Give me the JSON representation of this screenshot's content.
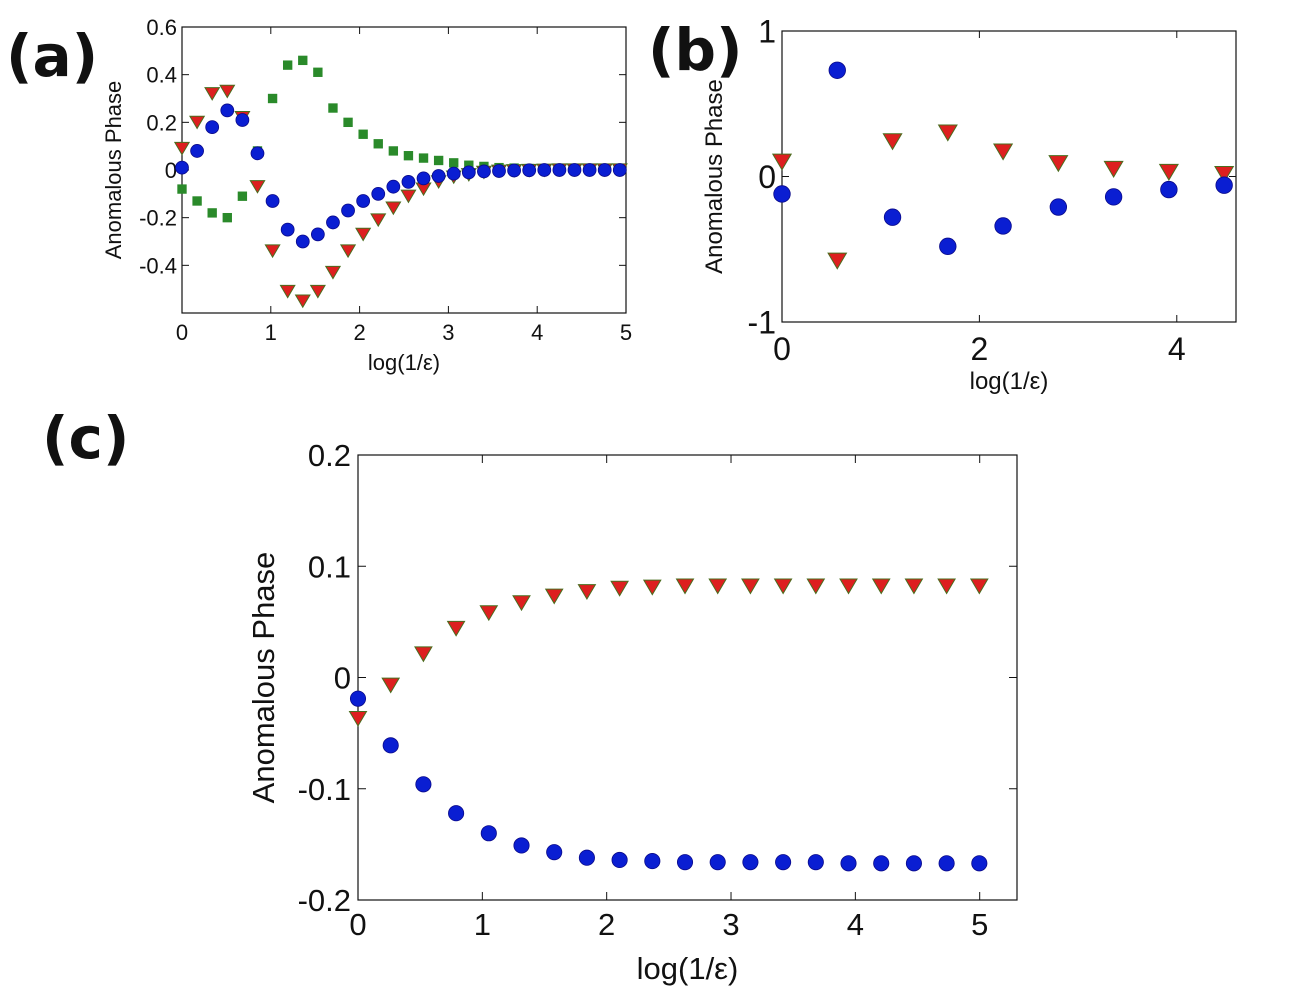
{
  "chart_data": [
    {
      "panel": "(a)",
      "type": "scatter",
      "xlabel": "log(1/ε)",
      "ylabel": "Anomalous Phase",
      "xlim": [
        0,
        5
      ],
      "ylim": [
        -0.6,
        0.6
      ],
      "xticks": [
        0,
        1,
        2,
        3,
        4,
        5
      ],
      "xtick_labels": [
        "0",
        "1",
        "2",
        "3",
        "4",
        "5"
      ],
      "yticks": [
        0.6,
        0.4,
        0.2,
        0,
        -0.2,
        -0.4
      ],
      "ytick_labels": [
        "0.6",
        "0.4",
        "0.2",
        "0",
        "-0.2",
        "-0.4"
      ],
      "x": [
        0,
        0.17,
        0.34,
        0.51,
        0.68,
        0.85,
        1.02,
        1.19,
        1.36,
        1.53,
        1.7,
        1.87,
        2.04,
        2.21,
        2.38,
        2.55,
        2.72,
        2.89,
        3.06,
        3.23,
        3.4,
        3.57,
        3.74,
        3.91,
        4.08,
        4.25,
        4.42,
        4.59,
        4.76,
        4.93
      ],
      "series": [
        {
          "name": "red-triangles",
          "color": "#dd1f1f",
          "marker": "triangle-down",
          "values": [
            0.09,
            0.2,
            0.32,
            0.33,
            0.22,
            -0.07,
            -0.34,
            -0.51,
            -0.55,
            -0.51,
            -0.43,
            -0.34,
            -0.27,
            -0.21,
            -0.16,
            -0.11,
            -0.08,
            -0.05,
            -0.03,
            -0.02,
            -0.01,
            -0.005,
            -0.003,
            -0.002,
            -0.001,
            0,
            0,
            0,
            0,
            0
          ]
        },
        {
          "name": "green-squares",
          "color": "#2a8a2a",
          "marker": "square",
          "values": [
            -0.08,
            -0.13,
            -0.18,
            -0.2,
            -0.11,
            0.08,
            0.3,
            0.44,
            0.46,
            0.41,
            0.26,
            0.2,
            0.15,
            0.11,
            0.08,
            0.06,
            0.05,
            0.04,
            0.03,
            0.02,
            0.015,
            0.01,
            0.008,
            0.006,
            0.004,
            0.003,
            0.002,
            0.001,
            0,
            0
          ]
        },
        {
          "name": "blue-circles",
          "color": "#0a1ed2",
          "marker": "circle",
          "values": [
            0.01,
            0.08,
            0.18,
            0.25,
            0.21,
            0.07,
            -0.13,
            -0.25,
            -0.3,
            -0.27,
            -0.22,
            -0.17,
            -0.13,
            -0.1,
            -0.07,
            -0.05,
            -0.035,
            -0.025,
            -0.015,
            -0.01,
            -0.006,
            -0.004,
            -0.002,
            -0.001,
            0,
            0,
            0,
            0,
            0,
            0
          ]
        }
      ]
    },
    {
      "panel": "(b)",
      "type": "scatter",
      "xlabel": "log(1/ε)",
      "ylabel": "Anomalous Phase",
      "xlim": [
        0,
        4.6
      ],
      "ylim": [
        -1,
        1
      ],
      "xticks": [
        0,
        2,
        4
      ],
      "xtick_labels": [
        "0",
        "2",
        "4"
      ],
      "yticks": [
        1,
        0,
        -1
      ],
      "ytick_labels": [
        "1",
        "0",
        "-1"
      ],
      "x": [
        0,
        0.56,
        1.12,
        1.68,
        2.24,
        2.8,
        3.36,
        3.92,
        4.48
      ],
      "series": [
        {
          "name": "red-triangles",
          "color": "#dd1f1f",
          "marker": "triangle-down",
          "values": [
            0.1,
            -0.58,
            0.24,
            0.3,
            0.17,
            0.09,
            0.05,
            0.03,
            0.015
          ]
        },
        {
          "name": "blue-circles",
          "color": "#0a1ed2",
          "marker": "circle",
          "values": [
            -0.12,
            0.73,
            -0.28,
            -0.48,
            -0.34,
            -0.21,
            -0.14,
            -0.09,
            -0.06
          ]
        }
      ]
    },
    {
      "panel": "(c)",
      "type": "scatter",
      "xlabel": "log(1/ε)",
      "ylabel": "Anomalous Phase",
      "xlim": [
        0,
        5.3
      ],
      "ylim": [
        -0.2,
        0.2
      ],
      "xticks": [
        0,
        1,
        2,
        3,
        4,
        5
      ],
      "xtick_labels": [
        "0",
        "1",
        "2",
        "3",
        "4",
        "5"
      ],
      "yticks": [
        0.2,
        0.1,
        0,
        -0.1,
        -0.2
      ],
      "ytick_labels": [
        "0.2",
        "0.1",
        "0",
        "-0.1",
        "-0.2"
      ],
      "x": [
        0,
        0.263,
        0.526,
        0.789,
        1.052,
        1.315,
        1.578,
        1.841,
        2.104,
        2.367,
        2.63,
        2.893,
        3.156,
        3.419,
        3.682,
        3.945,
        4.208,
        4.471,
        4.734,
        4.997
      ],
      "series": [
        {
          "name": "red-triangles",
          "color": "#dd1f1f",
          "marker": "triangle-down",
          "values": [
            -0.037,
            -0.007,
            0.021,
            0.044,
            0.058,
            0.067,
            0.073,
            0.077,
            0.08,
            0.081,
            0.082,
            0.082,
            0.082,
            0.082,
            0.082,
            0.082,
            0.082,
            0.082,
            0.082,
            0.082
          ]
        },
        {
          "name": "blue-circles",
          "color": "#0a1ed2",
          "marker": "circle",
          "values": [
            -0.019,
            -0.061,
            -0.096,
            -0.122,
            -0.14,
            -0.151,
            -0.157,
            -0.162,
            -0.164,
            -0.165,
            -0.166,
            -0.166,
            -0.166,
            -0.166,
            -0.166,
            -0.167,
            -0.167,
            -0.167,
            -0.167,
            -0.167
          ]
        }
      ]
    }
  ]
}
